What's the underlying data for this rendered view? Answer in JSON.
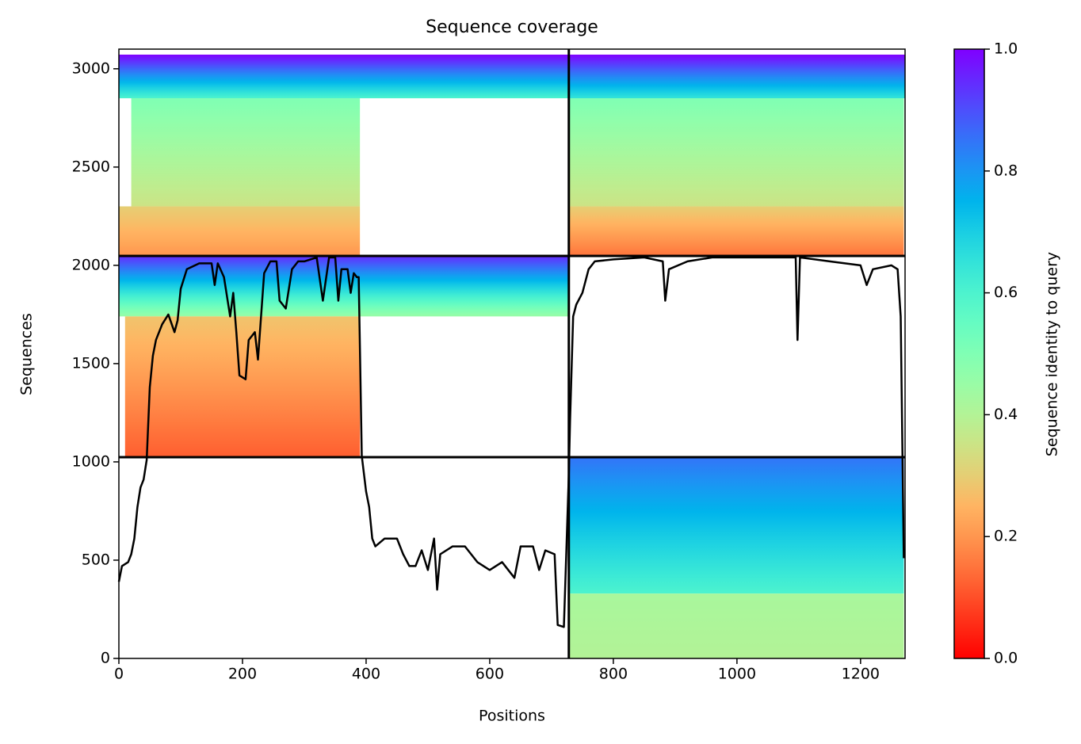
{
  "chart_data": {
    "type": "coverage",
    "title": "Sequence coverage",
    "xlabel": "Positions",
    "ylabel": "Sequences",
    "colorbar_label": "Sequence identity to query",
    "colormap": "rainbow_r",
    "xlim": [
      0,
      1272
    ],
    "ylim": [
      0,
      3100
    ],
    "xticks": [
      0,
      200,
      400,
      600,
      800,
      1000,
      1200
    ],
    "yticks": [
      0,
      500,
      1000,
      1500,
      2000,
      2500,
      3000
    ],
    "clim": [
      0,
      1
    ],
    "cticks": [
      {
        "value": 0,
        "label": "0.0"
      },
      {
        "value": 0.2,
        "label": "0.2"
      },
      {
        "value": 0.4,
        "label": "0.4"
      },
      {
        "value": 0.6,
        "label": "0.6"
      },
      {
        "value": 0.8,
        "label": "0.8"
      },
      {
        "value": 1,
        "label": "1.0"
      }
    ],
    "bands": [
      {
        "x": [
          0,
          728
        ],
        "y": [
          2850,
          3072
        ],
        "identity": [
          0.6,
          1.0
        ]
      },
      {
        "x": [
          20,
          390
        ],
        "y": [
          2300,
          2850
        ],
        "identity": [
          0.35,
          0.5
        ]
      },
      {
        "x": [
          0,
          390
        ],
        "y": [
          2048,
          2300
        ],
        "identity": [
          0.2,
          0.3
        ]
      },
      {
        "x": [
          728,
          1272
        ],
        "y": [
          2850,
          3072
        ],
        "identity": [
          0.65,
          1.0
        ]
      },
      {
        "x": [
          728,
          1270
        ],
        "y": [
          2300,
          2850
        ],
        "identity": [
          0.35,
          0.5
        ]
      },
      {
        "x": [
          728,
          1270
        ],
        "y": [
          2048,
          2300
        ],
        "identity": [
          0.15,
          0.3
        ]
      },
      {
        "x": [
          0,
          728
        ],
        "y": [
          1740,
          2048
        ],
        "identity": [
          0.45,
          0.95
        ]
      },
      {
        "x": [
          10,
          390
        ],
        "y": [
          1024,
          1740
        ],
        "identity": [
          0.12,
          0.28
        ]
      },
      {
        "x": [
          728,
          1270
        ],
        "y": [
          330,
          1024
        ],
        "identity": [
          0.6,
          0.85
        ]
      },
      {
        "x": [
          728,
          1270
        ],
        "y": [
          0,
          330
        ],
        "identity": [
          0.4,
          0.42
        ]
      }
    ],
    "boundaries": {
      "x": [
        728
      ],
      "y": [
        1024,
        2048
      ]
    },
    "coverage": {
      "color": "#000000",
      "x": [
        0,
        5,
        15,
        20,
        25,
        30,
        35,
        40,
        45,
        50,
        55,
        60,
        70,
        80,
        90,
        95,
        100,
        110,
        130,
        150,
        155,
        160,
        170,
        180,
        185,
        190,
        195,
        205,
        210,
        220,
        225,
        235,
        245,
        255,
        260,
        270,
        280,
        290,
        300,
        320,
        330,
        340,
        350,
        355,
        360,
        370,
        375,
        380,
        385,
        388,
        393,
        400,
        405,
        410,
        415,
        430,
        450,
        460,
        470,
        480,
        490,
        500,
        510,
        515,
        520,
        540,
        560,
        580,
        600,
        620,
        640,
        650,
        670,
        680,
        690,
        705,
        710,
        720,
        728,
        730,
        735,
        740,
        750,
        760,
        770,
        800,
        850,
        880,
        884,
        890,
        920,
        960,
        1000,
        1050,
        1095,
        1098,
        1102,
        1150,
        1200,
        1210,
        1220,
        1250,
        1260,
        1265,
        1270
      ],
      "values": [
        390,
        470,
        490,
        530,
        610,
        770,
        870,
        910,
        1010,
        1380,
        1540,
        1620,
        1700,
        1750,
        1660,
        1720,
        1880,
        1980,
        2010,
        2010,
        1900,
        2010,
        1940,
        1740,
        1860,
        1660,
        1440,
        1420,
        1620,
        1660,
        1520,
        1960,
        2020,
        2020,
        1820,
        1780,
        1980,
        2020,
        2020,
        2040,
        1820,
        2040,
        2040,
        1820,
        1980,
        1980,
        1860,
        1960,
        1940,
        1940,
        1030,
        850,
        770,
        610,
        570,
        610,
        610,
        530,
        470,
        470,
        550,
        450,
        610,
        350,
        530,
        570,
        570,
        490,
        450,
        490,
        410,
        570,
        570,
        450,
        550,
        530,
        170,
        160,
        930,
        1210,
        1740,
        1800,
        1860,
        1980,
        2020,
        2030,
        2040,
        2020,
        1820,
        1980,
        2020,
        2040,
        2040,
        2040,
        2040,
        1620,
        2040,
        2020,
        2000,
        1900,
        1980,
        2000,
        1980,
        1740,
        510
      ]
    }
  }
}
